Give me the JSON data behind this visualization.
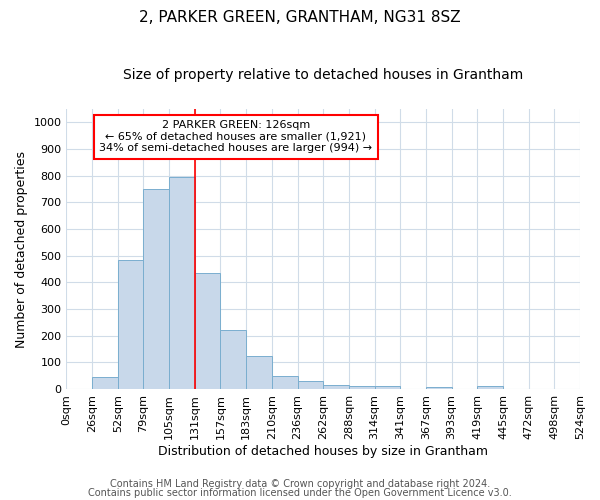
{
  "title": "2, PARKER GREEN, GRANTHAM, NG31 8SZ",
  "subtitle": "Size of property relative to detached houses in Grantham",
  "xlabel": "Distribution of detached houses by size in Grantham",
  "ylabel": "Number of detached properties",
  "annotation_line1": "2 PARKER GREEN: 126sqm",
  "annotation_line2": "← 65% of detached houses are smaller (1,921)",
  "annotation_line3": "34% of semi-detached houses are larger (994) →",
  "bar_color": "#c8d8ea",
  "bar_edge_color": "#7aaecf",
  "red_line_x": 5,
  "x_labels": [
    "0sqm",
    "26sqm",
    "52sqm",
    "79sqm",
    "105sqm",
    "131sqm",
    "157sqm",
    "183sqm",
    "210sqm",
    "236sqm",
    "262sqm",
    "288sqm",
    "314sqm",
    "341sqm",
    "367sqm",
    "393sqm",
    "419sqm",
    "445sqm",
    "472sqm",
    "498sqm",
    "524sqm"
  ],
  "bar_heights": [
    0,
    45,
    485,
    750,
    795,
    435,
    220,
    125,
    50,
    30,
    15,
    10,
    10,
    0,
    8,
    0,
    10,
    0,
    0,
    0,
    0
  ],
  "ylim": [
    0,
    1050
  ],
  "yticks": [
    0,
    100,
    200,
    300,
    400,
    500,
    600,
    700,
    800,
    900,
    1000
  ],
  "footer_line1": "Contains HM Land Registry data © Crown copyright and database right 2024.",
  "footer_line2": "Contains public sector information licensed under the Open Government Licence v3.0.",
  "background_color": "#ffffff",
  "grid_color": "#d0dce8",
  "title_fontsize": 11,
  "subtitle_fontsize": 10,
  "axis_label_fontsize": 9,
  "tick_fontsize": 8,
  "annotation_fontsize": 8,
  "footer_fontsize": 7
}
